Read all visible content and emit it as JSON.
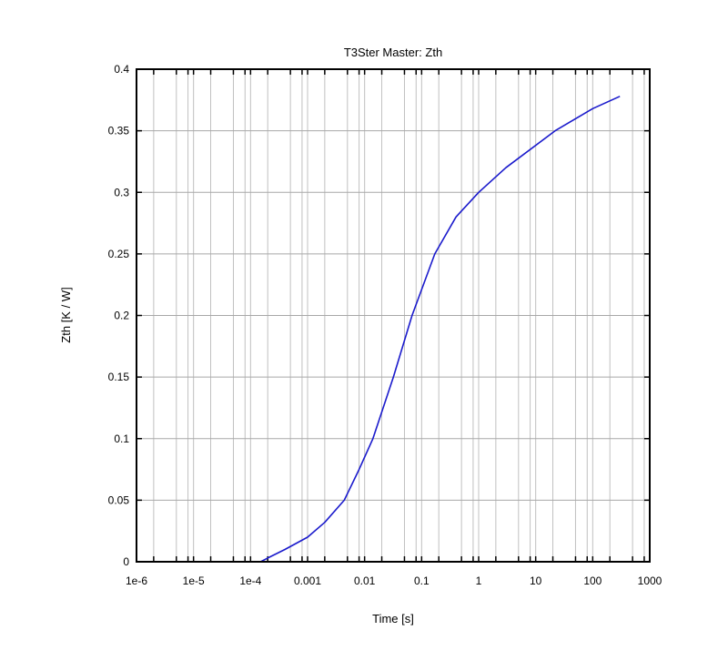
{
  "chart_data": {
    "type": "line",
    "title": "T3Ster Master: Zth",
    "xlabel": "Time [s]",
    "ylabel": "Zth [K / W]",
    "xscale": "log",
    "xlim": [
      1e-06,
      1000
    ],
    "ylim": [
      0,
      0.4
    ],
    "grid": true,
    "x_ticks": [
      {
        "v": 1e-06,
        "label": "1e-6"
      },
      {
        "v": 1e-05,
        "label": "1e-5"
      },
      {
        "v": 0.0001,
        "label": "1e-4"
      },
      {
        "v": 0.001,
        "label": "0.001"
      },
      {
        "v": 0.01,
        "label": "0.01"
      },
      {
        "v": 0.1,
        "label": "0.1"
      },
      {
        "v": 1,
        "label": "1"
      },
      {
        "v": 10,
        "label": "10"
      },
      {
        "v": 100,
        "label": "100"
      },
      {
        "v": 1000,
        "label": "1000"
      }
    ],
    "y_ticks": [
      {
        "v": 0,
        "label": "0"
      },
      {
        "v": 0.05,
        "label": "0.05"
      },
      {
        "v": 0.1,
        "label": "0.1"
      },
      {
        "v": 0.15,
        "label": "0.15"
      },
      {
        "v": 0.2,
        "label": "0.2"
      },
      {
        "v": 0.25,
        "label": "0.25"
      },
      {
        "v": 0.3,
        "label": "0.3"
      },
      {
        "v": 0.35,
        "label": "0.35"
      },
      {
        "v": 0.4,
        "label": "0.4"
      }
    ],
    "series": [
      {
        "name": "Zth",
        "color": "#1a1acc",
        "x": [
          1e-06,
          0.00015,
          0.0002,
          0.0004,
          0.001,
          0.002,
          0.0044,
          0.008,
          0.014,
          0.032,
          0.068,
          0.17,
          0.4,
          1,
          3,
          22,
          100,
          300
        ],
        "y": [
          0,
          0,
          0.003,
          0.01,
          0.02,
          0.032,
          0.05,
          0.075,
          0.1,
          0.15,
          0.2,
          0.25,
          0.28,
          0.3,
          0.32,
          0.35,
          0.368,
          0.378
        ]
      }
    ]
  }
}
